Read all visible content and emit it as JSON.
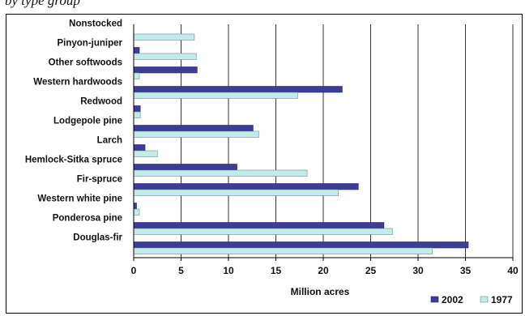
{
  "caption_fragment": "by type group",
  "chart_data": {
    "type": "bar",
    "orientation": "horizontal",
    "categories": [
      "Nonstocked",
      "Pinyon-juniper",
      "Other softwoods",
      "Western hardwoods",
      "Redwood",
      "Lodgepole pine",
      "Larch",
      "Hemlock-Sitka spruce",
      "Fir-spruce",
      "Western white pine",
      "Ponderosa pine",
      "Douglas-fir"
    ],
    "series": [
      {
        "name": "2002",
        "color": "#3c3c94",
        "values": [
          0,
          0.6,
          6.7,
          22.0,
          0.7,
          12.6,
          1.2,
          10.9,
          23.7,
          0.3,
          26.4,
          35.3
        ]
      },
      {
        "name": "1977",
        "color": "#c5eaea",
        "values": [
          6.4,
          6.6,
          0.6,
          17.3,
          0.7,
          13.2,
          2.5,
          18.3,
          21.6,
          0.6,
          27.3,
          31.5
        ]
      }
    ],
    "xlabel": "Million acres",
    "xlim": [
      0,
      40
    ],
    "xticks": [
      0,
      5,
      10,
      15,
      20,
      25,
      30,
      35,
      40
    ],
    "grid": "vertical",
    "legend_position": "bottom-right"
  }
}
